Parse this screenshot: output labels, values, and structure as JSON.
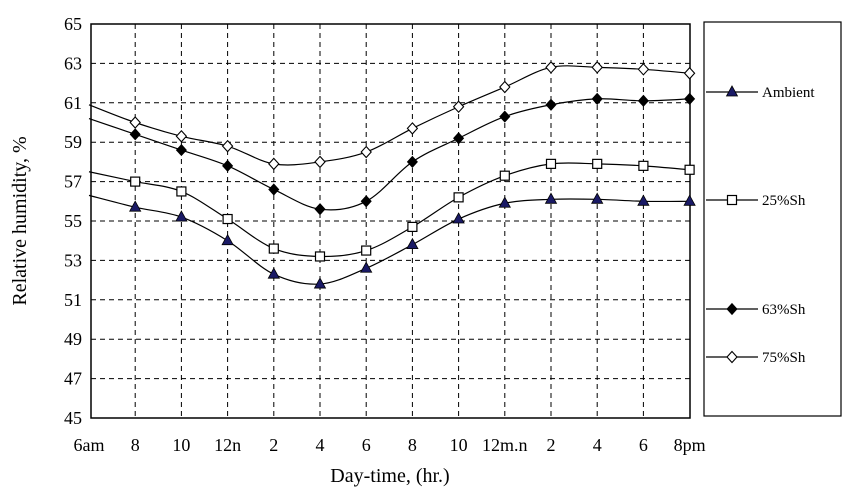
{
  "chart_data": {
    "type": "line",
    "title": "",
    "xlabel": "Day-time, (hr.)",
    "ylabel": "Relative humidity, %",
    "ylim": [
      45,
      65
    ],
    "yticks": [
      45,
      47,
      49,
      51,
      53,
      55,
      57,
      59,
      61,
      63,
      65
    ],
    "categories": [
      "6am",
      "8",
      "10",
      "12n",
      "2",
      "4",
      "6",
      "8",
      "10",
      "12m.n",
      "2",
      "4",
      "6",
      "8pm"
    ],
    "grid": true,
    "legend_position": "right",
    "series": [
      {
        "name": "Ambient",
        "marker": "filled-triangle",
        "values": [
          56.3,
          55.7,
          55.2,
          54.0,
          52.3,
          51.8,
          52.6,
          53.8,
          55.1,
          55.9,
          56.1,
          56.1,
          56.0,
          56.0
        ]
      },
      {
        "name": "25%Sh",
        "marker": "open-square",
        "values": [
          57.5,
          57.0,
          56.5,
          55.1,
          53.6,
          53.2,
          53.5,
          54.7,
          56.2,
          57.3,
          57.9,
          57.9,
          57.8,
          57.6
        ]
      },
      {
        "name": "63%Sh",
        "marker": "filled-diamond",
        "values": [
          60.2,
          59.4,
          58.6,
          57.8,
          56.6,
          55.6,
          56.0,
          58.0,
          59.2,
          60.3,
          60.9,
          61.2,
          61.1,
          61.2
        ]
      },
      {
        "name": "75%Sh",
        "marker": "open-diamond",
        "values": [
          60.9,
          60.0,
          59.3,
          58.8,
          57.9,
          58.0,
          58.5,
          59.7,
          60.8,
          61.8,
          62.8,
          62.8,
          62.7,
          62.5
        ]
      }
    ]
  }
}
